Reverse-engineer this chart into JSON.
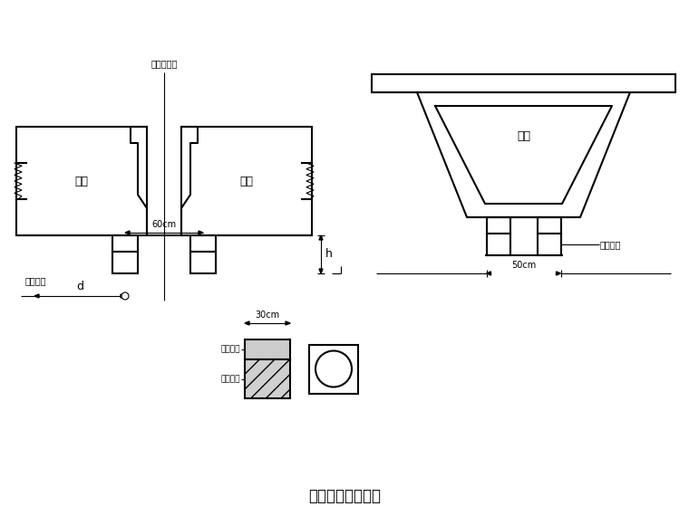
{
  "title": "非连续端临时支座",
  "bg_color": "#ffffff",
  "line_color": "#000000",
  "label_main_beam_l": "主棁",
  "label_main_beam_r": "符棁",
  "label_box_beam": "筱棁",
  "label_center_line": "桥梁中心线",
  "label_60cm": "60cm",
  "label_50cm": "50cm",
  "label_30cm": "30cm",
  "label_d": "d",
  "label_h": "h",
  "label_temp_support": "临时垒层",
  "label_steel_plate": "钉板垒层",
  "label_sand": "砂筒垒层",
  "label_support_note": "砂筒垒层"
}
